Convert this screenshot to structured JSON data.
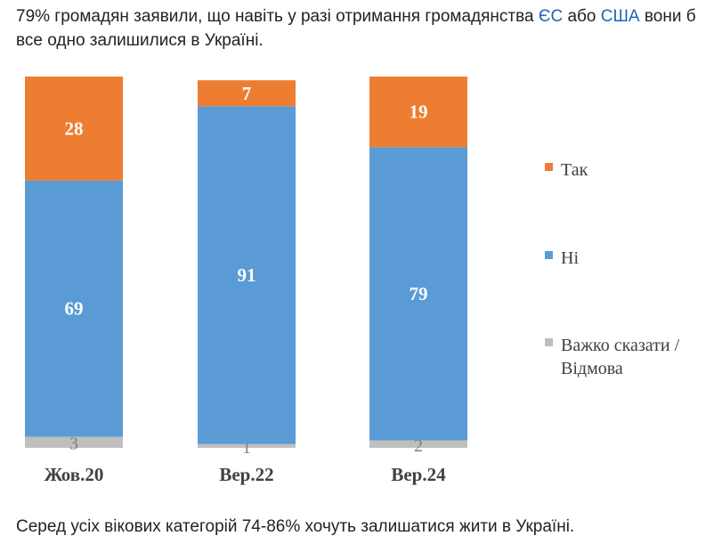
{
  "intro": {
    "text_before": "79% громадян заявили, що навіть у разі отримання громадянства ",
    "link_eu": "ЄС",
    "text_mid": " або ",
    "link_usa": "США",
    "text_after_line1": " вони б",
    "line2": "все одно залишилися в Україні."
  },
  "outro": "Серед усіх вікових категорій 74-86% хочуть залишатися жити в Україні.",
  "colors": {
    "yes": "#ed7d31",
    "no": "#5b9bd5",
    "hard": "#bfbfbf"
  },
  "chart_data": {
    "type": "bar",
    "stacked": true,
    "categories": [
      "Жов.20",
      "Вер.22",
      "Вер.24"
    ],
    "series": [
      {
        "name": "Важко сказати / Відмова",
        "values": [
          3,
          1,
          2
        ]
      },
      {
        "name": "Ні",
        "values": [
          69,
          91,
          79
        ]
      },
      {
        "name": "Так",
        "values": [
          28,
          7,
          19
        ]
      }
    ],
    "legend": [
      "Так",
      "Ні",
      "Важко сказати /",
      "Відмова"
    ],
    "ylim": [
      0,
      100
    ],
    "legend_position": "right"
  }
}
